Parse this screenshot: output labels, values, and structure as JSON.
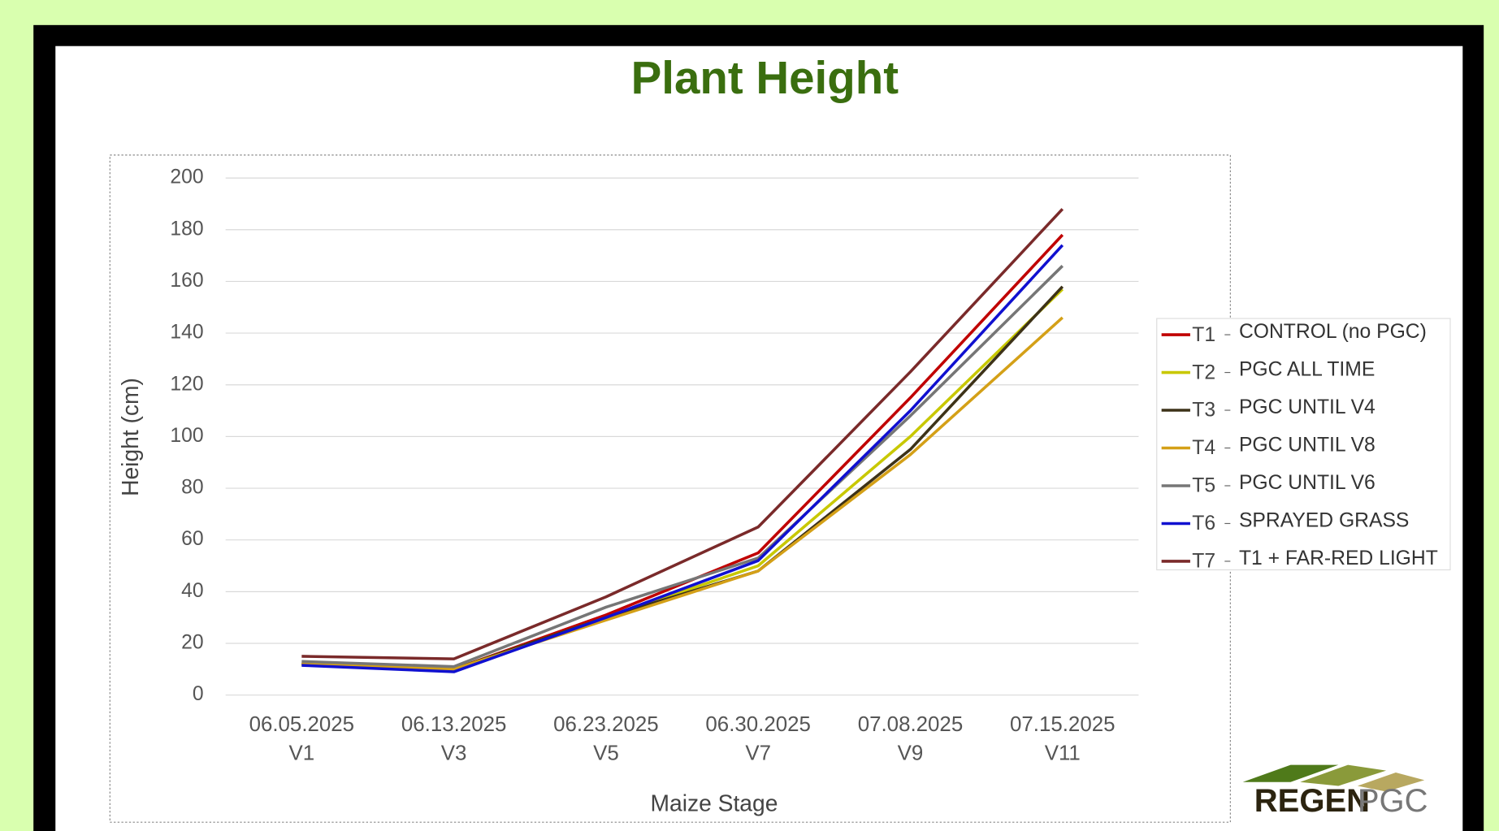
{
  "chart_data": {
    "type": "line",
    "title": "Plant Height",
    "y_label": "Height (cm)",
    "x_label": "Maize Stage",
    "categories": [
      "06.05.2025",
      "06.13.2025",
      "06.23.2025",
      "06.30.2025",
      "07.08.2025",
      "07.15.2025"
    ],
    "stages": [
      "V1",
      "V3",
      "V5",
      "V7",
      "V9",
      "V11"
    ],
    "ylim": [
      0,
      200
    ],
    "yticks": [
      0,
      20,
      40,
      60,
      80,
      100,
      120,
      140,
      160,
      180,
      200
    ],
    "grid": true,
    "legend": "right",
    "series": [
      {
        "name": "T1",
        "description": "CONTROL (no PGC)",
        "color": "#c00000",
        "values": [
          12,
          10,
          31,
          55,
          115,
          178
        ]
      },
      {
        "name": "T2",
        "description": "PGC ALL TIME",
        "color": "#c8c800",
        "values": [
          12,
          10,
          30,
          50,
          100,
          157
        ]
      },
      {
        "name": "T3",
        "description": "PGC UNTIL V4",
        "color": "#3d3218",
        "values": [
          12,
          10,
          30,
          48,
          95,
          158
        ]
      },
      {
        "name": "T4",
        "description": "PGC UNTIL V8",
        "color": "#d4a017",
        "values": [
          12,
          10,
          29,
          48,
          93,
          146
        ]
      },
      {
        "name": "T5",
        "description": "PGC UNTIL V6",
        "color": "#767676",
        "values": [
          13,
          11,
          34,
          53,
          108,
          166
        ]
      },
      {
        "name": "T6",
        "description": "SPRAYED GRASS",
        "color": "#1010d0",
        "values": [
          11.5,
          9,
          30,
          52,
          110,
          174
        ]
      },
      {
        "name": "T7",
        "description": "T1 + FAR-RED LIGHT",
        "color": "#7a2a2a",
        "values": [
          15,
          14,
          38,
          65,
          125,
          188
        ]
      }
    ]
  },
  "logo": {
    "part1": "REGEN",
    "part2": "PGC"
  }
}
